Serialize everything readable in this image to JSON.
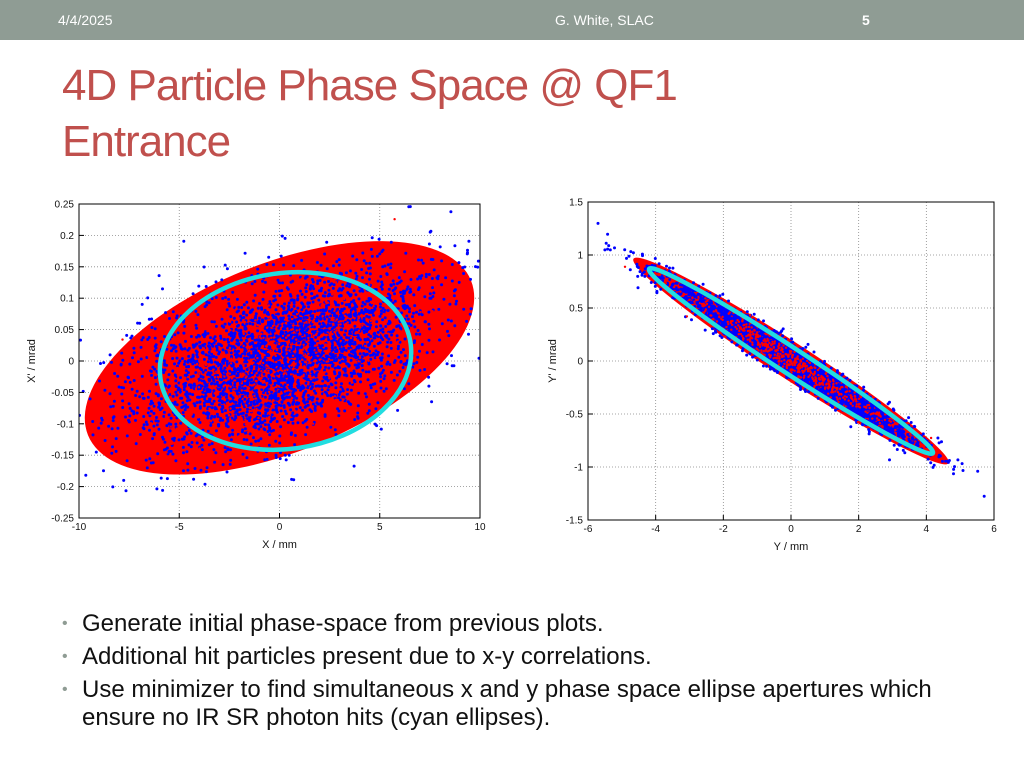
{
  "header": {
    "date": "4/4/2025",
    "author": "G. White, SLAC",
    "page": "5"
  },
  "slide": {
    "title_line1": "4D Particle Phase Space @ QF1",
    "title_line2": "Entrance"
  },
  "bullets": [
    "Generate initial phase-space from previous plots.",
    "Additional hit particles present due to x-y correlations.",
    "Use minimizer to find simultaneous x and y phase space ellipse apertures which ensure no IR SR photon hits (cyan ellipses)."
  ],
  "colors": {
    "hit": "#ff0000",
    "pass": "#0000ff",
    "aperture": "#22dde0",
    "accent": "#c0504d",
    "bar": "#8f9c94"
  },
  "chart_data": [
    {
      "type": "scatter",
      "title": "",
      "xlabel": "X / mm",
      "ylabel": "X' / mrad",
      "xlim": [
        -10,
        10
      ],
      "ylim": [
        -0.25,
        0.25
      ],
      "xticks": [
        "-10",
        "-5",
        "0",
        "5",
        "10"
      ],
      "yticks": [
        "0.25",
        "0.2",
        "0.15",
        "0.1",
        "0.05",
        "0",
        "-0.05",
        "-0.1",
        "-0.15",
        "-0.2",
        "-0.25"
      ],
      "xtick_values": [
        -10,
        -5,
        0,
        5,
        10
      ],
      "ytick_values": [
        0.25,
        0.2,
        0.15,
        0.1,
        0.05,
        0,
        -0.05,
        -0.1,
        -0.15,
        -0.2,
        -0.25
      ],
      "grid": true,
      "series": [
        {
          "name": "hit particles (red)",
          "region": "ellipse",
          "center": [
            0,
            0.005
          ],
          "semi_axes": [
            10.3,
            0.15
          ],
          "tilt_deg": 22
        },
        {
          "name": "passing particles (blue)",
          "region": "core",
          "center": [
            0.5,
            0.0
          ],
          "spread": [
            4.5,
            0.09
          ]
        },
        {
          "name": "aperture ellipse (cyan)",
          "region": "ellipse_outline",
          "center": [
            0.3,
            0.0
          ],
          "semi_axes": [
            6.3,
            0.14
          ],
          "tilt_deg": 8
        }
      ]
    },
    {
      "type": "scatter",
      "title": "",
      "xlabel": "Y / mm",
      "ylabel": "Y' / mrad",
      "xlim": [
        -6,
        6
      ],
      "ylim": [
        -1.5,
        1.5
      ],
      "xticks": [
        "-6",
        "-4",
        "-2",
        "0",
        "2",
        "4",
        "6"
      ],
      "yticks": [
        "1.5",
        "1",
        "0.5",
        "0",
        "-0.5",
        "-1",
        "-1.5"
      ],
      "xtick_values": [
        -6,
        -4,
        -2,
        0,
        2,
        4,
        6
      ],
      "ytick_values": [
        1.5,
        1,
        0.5,
        0,
        -0.5,
        -1,
        -1.5
      ],
      "grid": true,
      "series": [
        {
          "name": "hit particles (red)",
          "region": "ellipse",
          "center": [
            0,
            0
          ],
          "semi_axes": [
            5.55,
            0.17
          ],
          "tilt_deg": -33
        },
        {
          "name": "passing particles (blue)",
          "region": "core",
          "center": [
            0,
            0
          ],
          "spread": [
            3.8,
            0.12
          ]
        },
        {
          "name": "aperture ellipse (cyan)",
          "region": "ellipse_outline",
          "center": [
            0,
            0
          ],
          "semi_axes": [
            5.0,
            0.12
          ],
          "tilt_deg": -33
        }
      ]
    }
  ]
}
